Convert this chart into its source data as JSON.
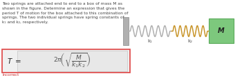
{
  "text_block": "Two springs are attached end to end to a box of mass M as\nshown in the figure. Determine an expression that gives the\nperiod T of motion for the box attached to this combination of\nsprings. The two individual springs have spring constants of\nk₁ and k₂, respectively.",
  "incorrect_label": "Incorrect",
  "spring1_color": "#b0b0b0",
  "spring2_color": "#c8952a",
  "box_color": "#7dc87d",
  "box_edge_color": "#5aaa5a",
  "box_label": "M",
  "k1_label": "k₁",
  "k2_label": "k₂",
  "wall_color": "#b0b0b0",
  "wall_edge_color": "#888888",
  "background_color": "#ffffff",
  "formula_box_fill": "#f0f0f0",
  "formula_box_border": "#e05050",
  "incorrect_color": "#cc3333",
  "text_color": "#444444"
}
